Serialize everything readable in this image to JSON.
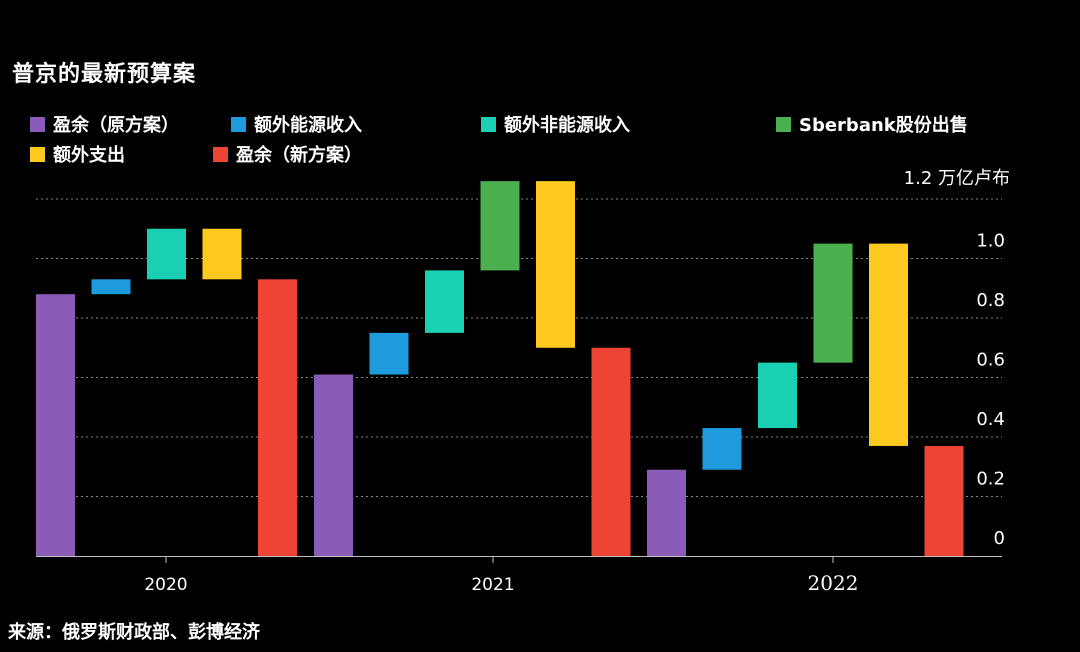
{
  "title": "普京的最新预算案",
  "source": "来源：俄罗斯财政部、彭博经济",
  "legend": [
    {
      "label": "盈余（原方案）",
      "color": "#8a5cb8"
    },
    {
      "label": "额外能源收入",
      "color": "#1e9bdc"
    },
    {
      "label": "额外非能源收入",
      "color": "#19d1b2"
    },
    {
      "label": "Sberbank股份出售",
      "color": "#4caf50"
    },
    {
      "label": "额外支出",
      "color": "#ffca1f"
    },
    {
      "label": "盈余（新方案）",
      "color": "#ee4435"
    }
  ],
  "chart_data": {
    "type": "waterfall",
    "unit_label": "1.2 万亿卢布",
    "ylim": [
      0,
      1.2
    ],
    "y_ticks": [
      {
        "value": 0,
        "label": "0"
      },
      {
        "value": 0.2,
        "label": "0.2"
      },
      {
        "value": 0.4,
        "label": "0.4"
      },
      {
        "value": 0.6,
        "label": "0.6"
      },
      {
        "value": 0.8,
        "label": "0.8"
      },
      {
        "value": 1.0,
        "label": "1.0"
      }
    ],
    "gridlines": [
      0.2,
      0.4,
      0.6,
      0.8,
      1.0,
      1.2
    ],
    "groups": [
      {
        "year": "2020",
        "bars": [
          {
            "series": "盈余（原方案）",
            "color": "#8a5cb8",
            "low": 0,
            "high": 0.88
          },
          {
            "series": "额外能源收入",
            "color": "#1e9bdc",
            "low": 0.88,
            "high": 0.93
          },
          {
            "series": "额外非能源收入",
            "color": "#19d1b2",
            "low": 0.93,
            "high": 1.1
          },
          {
            "series": "额外支出",
            "color": "#ffca1f",
            "low": 0.93,
            "high": 1.1
          },
          {
            "series": "盈余（新方案）",
            "color": "#ee4435",
            "low": 0,
            "high": 0.93
          }
        ]
      },
      {
        "year": "2021",
        "bars": [
          {
            "series": "盈余（原方案）",
            "color": "#8a5cb8",
            "low": 0,
            "high": 0.61
          },
          {
            "series": "额外能源收入",
            "color": "#1e9bdc",
            "low": 0.61,
            "high": 0.75
          },
          {
            "series": "额外非能源收入",
            "color": "#19d1b2",
            "low": 0.75,
            "high": 0.96
          },
          {
            "series": "Sberbank股份出售",
            "color": "#4caf50",
            "low": 0.96,
            "high": 1.26
          },
          {
            "series": "额外支出",
            "color": "#ffca1f",
            "low": 0.7,
            "high": 1.26
          },
          {
            "series": "盈余（新方案）",
            "color": "#ee4435",
            "low": 0,
            "high": 0.7
          }
        ]
      },
      {
        "year": "2022",
        "bars": [
          {
            "series": "盈余（原方案）",
            "color": "#8a5cb8",
            "low": 0,
            "high": 0.29
          },
          {
            "series": "额外能源收入",
            "color": "#1e9bdc",
            "low": 0.29,
            "high": 0.43
          },
          {
            "series": "额外非能源收入",
            "color": "#19d1b2",
            "low": 0.43,
            "high": 0.65
          },
          {
            "series": "Sberbank股份出售",
            "color": "#4caf50",
            "low": 0.65,
            "high": 1.05
          },
          {
            "series": "额外支出",
            "color": "#ffca1f",
            "low": 0.37,
            "high": 1.05
          },
          {
            "series": "盈余（新方案）",
            "color": "#ee4435",
            "low": 0,
            "high": 0.37
          }
        ]
      }
    ]
  }
}
